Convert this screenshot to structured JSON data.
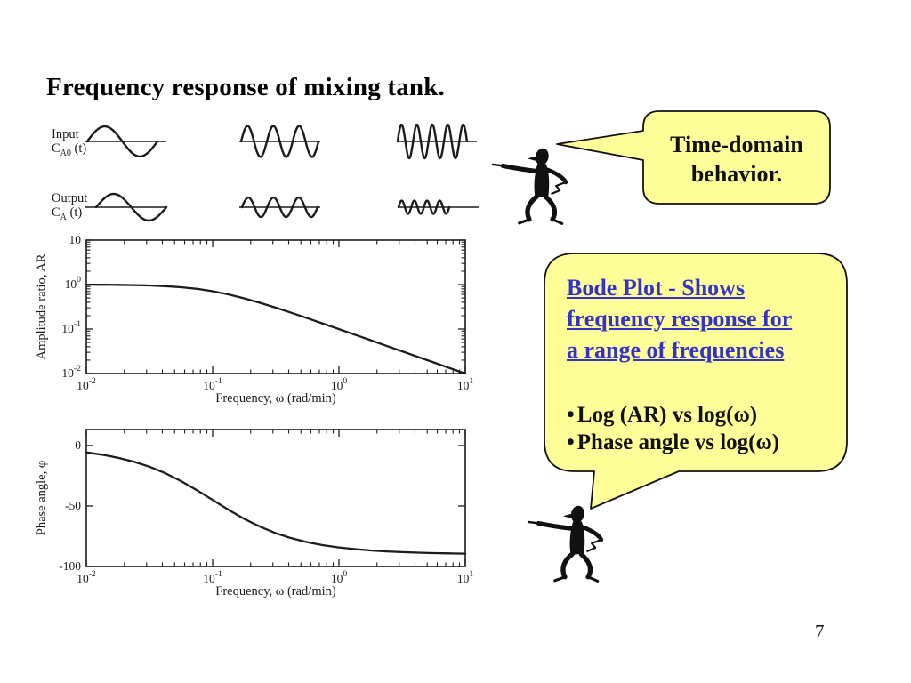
{
  "slide": {
    "title": "Frequency response of mixing tank.",
    "page_number": "7",
    "background": "#ffffff"
  },
  "waveform_figure": {
    "input_label": {
      "line1": "Input",
      "sym_base": "C",
      "sym_sub": "A0",
      "sym_rest": " (t)"
    },
    "output_label": {
      "line1": "Output",
      "sym_base": "C",
      "sym_sub": "A",
      "sym_rest": " (t)"
    },
    "rows": [
      {
        "name": "input",
        "amps": [
          17,
          17.5,
          19
        ],
        "cycles": [
          1,
          3,
          4.5
        ]
      },
      {
        "name": "output",
        "amps": [
          15,
          11,
          7.5
        ],
        "cycles": [
          1,
          3,
          4
        ]
      }
    ]
  },
  "callout1": {
    "lines": [
      "Time-domain",
      "behavior."
    ],
    "fill": "#FFFF99",
    "border": "#111111"
  },
  "callout2": {
    "heading_lines": [
      "Bode Plot - Shows",
      "frequency response for",
      "a range of frequencies"
    ],
    "bullet_char": "•",
    "bullets": [
      "Log (AR) vs log(ω)",
      "Phase angle vs log(ω)"
    ],
    "fill": "#FFFF99",
    "border": "#111111",
    "heading_color": "#3333CC"
  },
  "chart_data": [
    {
      "type": "line",
      "id": "amplitude_ratio",
      "title": "",
      "xlabel": "Frequency, ω (rad/min)",
      "ylabel": "Amplitude ratio, AR",
      "x_scale": "log",
      "y_scale": "log",
      "xlim": [
        0.01,
        10
      ],
      "ylim": [
        0.01,
        10
      ],
      "x_tick_labels": [
        [
          "10",
          "-2"
        ],
        [
          "10",
          "-1"
        ],
        [
          "10",
          "0"
        ],
        [
          "10",
          "1"
        ]
      ],
      "x_tick_values": [
        0.01,
        0.1,
        1,
        10
      ],
      "y_tick_labels": [
        [
          "10",
          ""
        ],
        [
          "10",
          "0"
        ],
        [
          "10",
          "-1"
        ],
        [
          "10",
          "-2"
        ]
      ],
      "y_tick_values": [
        10,
        1,
        0.1,
        0.01
      ],
      "grid": false,
      "legend": null,
      "series": [
        {
          "name": "AR",
          "x": [
            0.01,
            0.0133,
            0.0178,
            0.0237,
            0.0316,
            0.0422,
            0.0562,
            0.075,
            0.1,
            0.1334,
            0.1778,
            0.2371,
            0.3162,
            0.4217,
            0.5623,
            0.7499,
            1,
            1.334,
            1.778,
            2.371,
            3.162,
            4.217,
            5.623,
            7.499,
            10
          ],
          "y": [
            0.995,
            0.991,
            0.985,
            0.973,
            0.953,
            0.921,
            0.872,
            0.8,
            0.707,
            0.6,
            0.49,
            0.389,
            0.302,
            0.231,
            0.175,
            0.132,
            0.0995,
            0.0748,
            0.0562,
            0.0421,
            0.0316,
            0.0237,
            0.0178,
            0.0133,
            0.01
          ]
        }
      ]
    },
    {
      "type": "line",
      "id": "phase_angle",
      "title": "",
      "xlabel": "Frequency, ω (rad/min)",
      "ylabel": "Phase angle, φ",
      "x_scale": "log",
      "y_scale": "linear",
      "xlim": [
        0.01,
        10
      ],
      "ylim": [
        -100,
        0
      ],
      "x_tick_labels": [
        [
          "10",
          "-2"
        ],
        [
          "10",
          "-1"
        ],
        [
          "10",
          "0"
        ],
        [
          "10",
          "1"
        ]
      ],
      "x_tick_values": [
        0.01,
        0.1,
        1,
        10
      ],
      "y_tick_labels": [
        [
          "0",
          ""
        ],
        [
          "-50",
          ""
        ],
        [
          "-100",
          ""
        ]
      ],
      "y_tick_values": [
        0,
        -50,
        -100
      ],
      "grid": false,
      "legend": null,
      "series": [
        {
          "name": "phase",
          "x": [
            0.01,
            0.0133,
            0.0178,
            0.0237,
            0.0316,
            0.0422,
            0.0562,
            0.075,
            0.1,
            0.1334,
            0.1778,
            0.2371,
            0.3162,
            0.4217,
            0.5623,
            0.7499,
            1,
            1.334,
            1.778,
            2.371,
            3.162,
            4.217,
            5.623,
            7.499,
            10
          ],
          "y": [
            -5.7,
            -7.6,
            -10.1,
            -13.3,
            -17.5,
            -22.9,
            -29.4,
            -36.9,
            -45,
            -53.1,
            -60.7,
            -67.1,
            -72.5,
            -76.7,
            -79.9,
            -82.4,
            -84.3,
            -85.7,
            -86.8,
            -87.6,
            -88.2,
            -88.6,
            -89,
            -89.2,
            -89.4
          ]
        }
      ]
    }
  ]
}
